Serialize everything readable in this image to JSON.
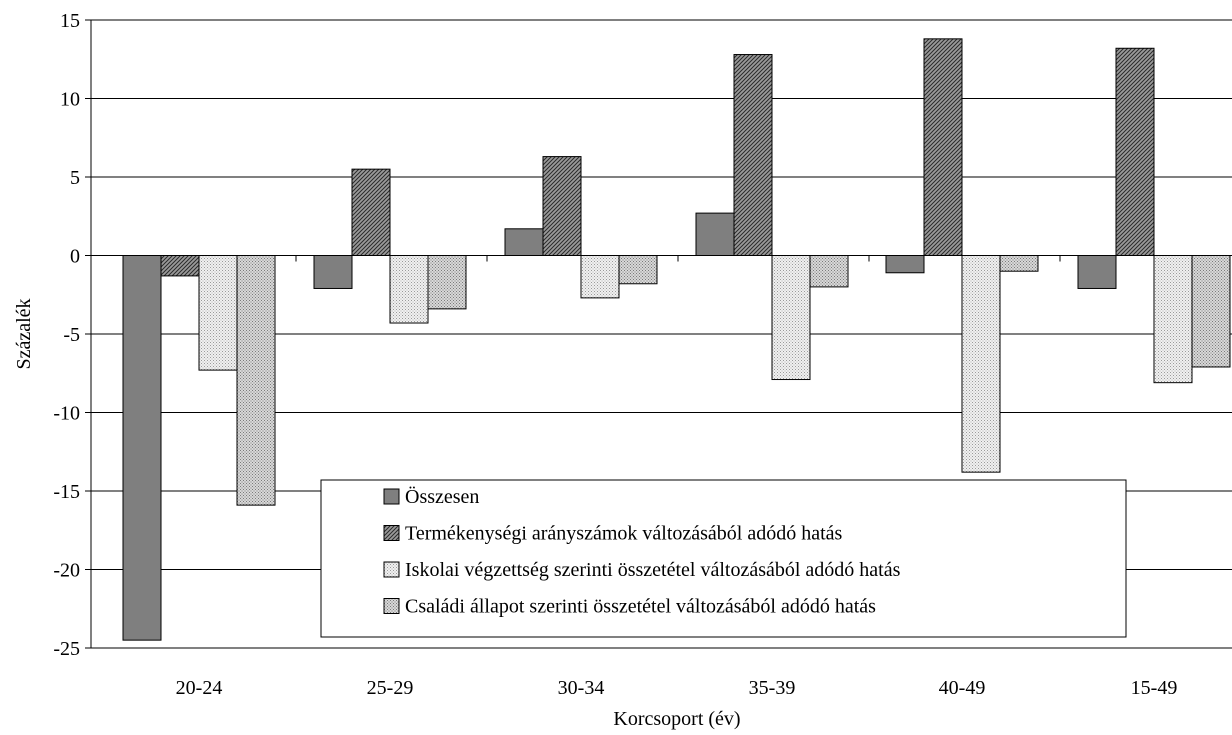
{
  "chart_data": {
    "type": "bar",
    "title": "",
    "xlabel": "Korcsoport (év)",
    "ylabel": "Százalék",
    "ylim": [
      -25,
      15
    ],
    "yticks": [
      15,
      10,
      5,
      0,
      -5,
      -10,
      -15,
      -20,
      -25
    ],
    "grid": true,
    "legend_position": "bottom-center",
    "categories": [
      "20-24",
      "25-29",
      "30-34",
      "35-39",
      "40-49",
      "15-49"
    ],
    "series": [
      {
        "name": "Összesen",
        "color": "#7f7f7f",
        "pattern": "solid",
        "values": [
          -24.5,
          -2.1,
          1.7,
          2.7,
          -1.1,
          -2.1
        ]
      },
      {
        "name": "Termékenységi arányszámok változásából adódó hatás",
        "color": "#8c8c8c",
        "pattern": "diagonal-hatch",
        "values": [
          -1.3,
          5.5,
          6.3,
          12.8,
          13.8,
          13.2
        ]
      },
      {
        "name": "Iskolai végzettség szerinti összetétel változásából adódó hatás",
        "color": "#e8e8e8",
        "pattern": "fine-dots",
        "values": [
          -7.3,
          -4.3,
          -2.7,
          -7.9,
          -13.8,
          -8.1
        ]
      },
      {
        "name": "Családi állapot szerinti összetétel változásából adódó hatás",
        "color": "#c8c8c8",
        "pattern": "dense-dots",
        "values": [
          -15.9,
          -3.4,
          -1.8,
          -2.0,
          -1.0,
          -7.1
        ]
      }
    ]
  }
}
